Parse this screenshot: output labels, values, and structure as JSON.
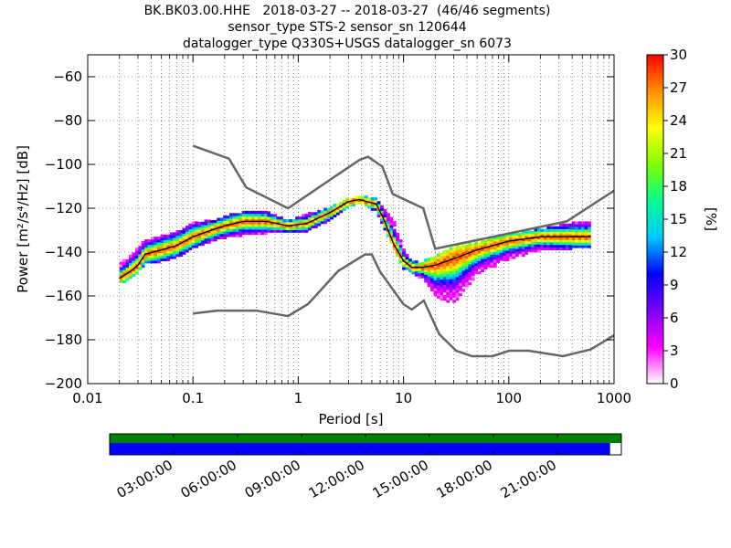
{
  "header": {
    "title_line1": "BK.BK03.00.HHE   2018-03-27 -- 2018-03-27  (46/46 segments)",
    "title_line2": "sensor_type STS-2 sensor_sn 120644",
    "title_line3": "datalogger_type Q330S+USGS datalogger_sn 6073"
  },
  "chart_data": {
    "type": "heatmap",
    "xlabel": "Period [s]",
    "ylabel": "Power [m²/s⁴/Hz] [dB]",
    "x_scale": "log",
    "xlim": [
      0.01,
      1000
    ],
    "ylim": [
      -200,
      -50
    ],
    "x_ticks": [
      0.01,
      0.1,
      1,
      10,
      100,
      1000
    ],
    "x_tick_labels": [
      "0.01",
      "0.1",
      "1",
      "10",
      "100",
      "1000"
    ],
    "y_ticks": [
      -200,
      -180,
      -160,
      -140,
      -120,
      -100,
      -80,
      -60
    ],
    "y_tick_labels": [
      "−200",
      "−180",
      "−160",
      "−140",
      "−120",
      "−100",
      "−80",
      "−60"
    ],
    "grid": "dotted",
    "colorbar": {
      "label": "[%]",
      "range": [
        0,
        30
      ],
      "ticks": [
        0,
        3,
        6,
        9,
        12,
        15,
        18,
        21,
        24,
        27,
        30
      ],
      "tick_labels": [
        "0",
        "3",
        "6",
        "9",
        "12",
        "15",
        "18",
        "21",
        "24",
        "27",
        "30"
      ],
      "colors": [
        "#ffffff",
        "#ff00ff",
        "#7a00ff",
        "#0000ff",
        "#00c8ff",
        "#00ff90",
        "#7fff00",
        "#ffff00",
        "#ff9000",
        "#ff0000"
      ]
    },
    "noise_models": {
      "high": {
        "x": [
          0.1,
          0.22,
          0.32,
          0.8,
          3.8,
          4.6,
          6.3,
          7.9,
          15.4,
          20,
          354.8,
          1000
        ],
        "y": [
          -91.5,
          -97.4,
          -110.5,
          -120,
          -98,
          -96.5,
          -101,
          -113.5,
          -120,
          -138.5,
          -126,
          -112
        ]
      },
      "low": {
        "x": [
          0.1,
          0.17,
          0.4,
          0.8,
          1.24,
          2.4,
          4.3,
          5,
          6,
          10,
          12,
          15.6,
          21.9,
          31.6,
          45,
          70,
          101,
          154,
          328,
          600,
          1000
        ],
        "y": [
          -168,
          -166.7,
          -166.7,
          -169.2,
          -163.7,
          -148.6,
          -141.1,
          -141.1,
          -149,
          -163.8,
          -166.2,
          -162.1,
          -177.5,
          -185,
          -187.5,
          -187.5,
          -185,
          -185,
          -187.5,
          -184.4,
          -178
        ]
      }
    },
    "median": {
      "x": [
        0.02,
        0.025,
        0.03,
        0.035,
        0.05,
        0.07,
        0.1,
        0.15,
        0.2,
        0.3,
        0.5,
        0.8,
        1.2,
        2,
        3,
        3.8,
        4.5,
        5.5,
        6.5,
        8,
        10,
        12,
        15,
        20,
        30,
        50,
        100,
        200,
        400,
        600
      ],
      "y": [
        -152,
        -149,
        -146,
        -141,
        -139,
        -137,
        -133,
        -130,
        -128,
        -126,
        -126,
        -128,
        -127,
        -122,
        -117,
        -116,
        -117,
        -118,
        -125,
        -136,
        -144,
        -147,
        -147,
        -146,
        -143,
        -139,
        -135,
        -133,
        -133,
        -133
      ]
    },
    "psd_spread": {
      "x": [
        0.02,
        0.025,
        0.03,
        0.035,
        0.05,
        0.07,
        0.1,
        0.15,
        0.2,
        0.3,
        0.5,
        0.8,
        1.2,
        2,
        3,
        3.8,
        4.5,
        5.5,
        6.5,
        8,
        10,
        12,
        15,
        20,
        30,
        50,
        100,
        200,
        400,
        600
      ],
      "lo": [
        -154,
        -152,
        -149,
        -145,
        -144,
        -142,
        -138,
        -135,
        -133,
        -132,
        -131,
        -131,
        -130,
        -125,
        -119,
        -117,
        -119,
        -121,
        -128,
        -138,
        -147,
        -149,
        -152,
        -160,
        -163,
        -150,
        -143,
        -139,
        -138,
        -137
      ],
      "hi": [
        -146,
        -142,
        -138,
        -135,
        -133,
        -131,
        -127,
        -126,
        -124,
        -122,
        -122,
        -126,
        -123,
        -120,
        -116,
        -115,
        -115,
        -116,
        -121,
        -125,
        -139,
        -145,
        -145,
        -142,
        -138,
        -136,
        -132,
        -130,
        -127,
        -126
      ]
    },
    "time_coverage": {
      "tick_labels": [
        "03:00:00",
        "06:00:00",
        "09:00:00",
        "12:00:00",
        "15:00:00",
        "18:00:00",
        "21:00:00"
      ],
      "top_bar_color": "#008000",
      "bottom_bar_color": "#0000ff",
      "coverage_fraction": 0.978
    }
  }
}
